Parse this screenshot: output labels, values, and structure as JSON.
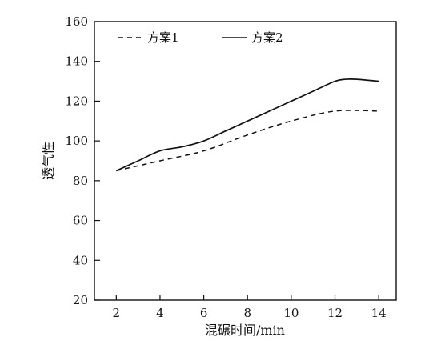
{
  "chart_data": {
    "type": "line",
    "xlabel": "混碾时间/min",
    "ylabel": "透气性",
    "xlim": [
      1,
      14.8
    ],
    "ylim": [
      20,
      160
    ],
    "xticks": [
      2,
      4,
      6,
      8,
      10,
      12,
      14
    ],
    "yticks": [
      20,
      40,
      60,
      80,
      100,
      120,
      140,
      160
    ],
    "grid": false,
    "legend_position": "top-left",
    "series": [
      {
        "name": "方案1",
        "style": "dashed",
        "color": "#111111",
        "x": [
          2,
          4,
          6,
          8,
          10,
          12,
          14
        ],
        "y": [
          85,
          90,
          95,
          103,
          110,
          115,
          115
        ]
      },
      {
        "name": "方案2",
        "style": "solid",
        "color": "#111111",
        "x": [
          2,
          3,
          4,
          5,
          6,
          7,
          8,
          9,
          10,
          11,
          12,
          12.5,
          13,
          14
        ],
        "y": [
          85,
          90,
          95,
          97,
          100,
          105,
          110,
          115,
          120,
          125,
          130,
          131,
          131,
          130
        ]
      }
    ]
  }
}
